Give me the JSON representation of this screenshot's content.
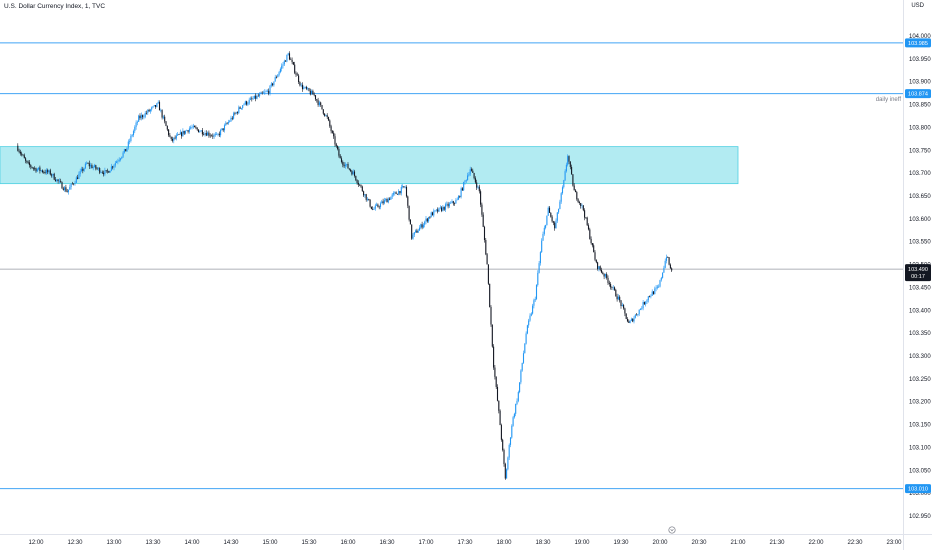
{
  "header": {
    "symbol_title": "U.S. Dollar Currency Index, 1, TVC",
    "currency": "USD"
  },
  "colors": {
    "background": "#ffffff",
    "candle_up": "#2196f3",
    "candle_down": "#131722",
    "level_line": "#42a5f5",
    "zone_fill": "#b2ebf2",
    "zone_border": "#4dd0e1",
    "axis_text": "#131722",
    "price_tag_bg": "#2196f3",
    "last_tag_bg": "#131722",
    "last_line": "#9598a1"
  },
  "chart_data": {
    "type": "candlestick",
    "symbol": "U.S. Dollar Currency Index",
    "interval": "1",
    "source": "TVC",
    "ylim": [
      102.93,
      104.02
    ],
    "y_ticks": [
      104.0,
      103.95,
      103.9,
      103.85,
      103.8,
      103.75,
      103.7,
      103.65,
      103.6,
      103.55,
      103.5,
      103.45,
      103.4,
      103.35,
      103.3,
      103.25,
      103.2,
      103.15,
      103.1,
      103.05,
      103.0,
      102.95
    ],
    "x_range": [
      "11:46",
      "23:13"
    ],
    "x_ticks": [
      "12:00",
      "12:30",
      "13:00",
      "13:30",
      "14:00",
      "14:30",
      "15:00",
      "15:30",
      "16:00",
      "16:30",
      "17:00",
      "17:30",
      "18:00",
      "18:30",
      "19:00",
      "19:30",
      "20:00",
      "20:30",
      "21:00",
      "21:30",
      "22:00",
      "22:30",
      "23:00"
    ],
    "path_keypoints": [
      {
        "t": "11:46",
        "p": 103.76
      },
      {
        "t": "11:54",
        "p": 103.72
      },
      {
        "t": "12:00",
        "p": 103.71
      },
      {
        "t": "12:12",
        "p": 103.7
      },
      {
        "t": "12:25",
        "p": 103.66
      },
      {
        "t": "12:40",
        "p": 103.72
      },
      {
        "t": "12:55",
        "p": 103.7
      },
      {
        "t": "13:10",
        "p": 103.75
      },
      {
        "t": "13:20",
        "p": 103.82
      },
      {
        "t": "13:35",
        "p": 103.85
      },
      {
        "t": "13:45",
        "p": 103.77
      },
      {
        "t": "14:00",
        "p": 103.8
      },
      {
        "t": "14:20",
        "p": 103.78
      },
      {
        "t": "14:40",
        "p": 103.85
      },
      {
        "t": "15:00",
        "p": 103.88
      },
      {
        "t": "15:15",
        "p": 103.96
      },
      {
        "t": "15:25",
        "p": 103.89
      },
      {
        "t": "15:35",
        "p": 103.87
      },
      {
        "t": "15:45",
        "p": 103.82
      },
      {
        "t": "15:55",
        "p": 103.73
      },
      {
        "t": "16:05",
        "p": 103.7
      },
      {
        "t": "16:20",
        "p": 103.62
      },
      {
        "t": "16:35",
        "p": 103.65
      },
      {
        "t": "16:45",
        "p": 103.67
      },
      {
        "t": "16:50",
        "p": 103.56
      },
      {
        "t": "17:05",
        "p": 103.61
      },
      {
        "t": "17:25",
        "p": 103.64
      },
      {
        "t": "17:35",
        "p": 103.71
      },
      {
        "t": "17:42",
        "p": 103.66
      },
      {
        "t": "17:48",
        "p": 103.5
      },
      {
        "t": "17:53",
        "p": 103.28
      },
      {
        "t": "17:58",
        "p": 103.15
      },
      {
        "t": "18:02",
        "p": 103.03
      },
      {
        "t": "18:07",
        "p": 103.15
      },
      {
        "t": "18:12",
        "p": 103.22
      },
      {
        "t": "18:18",
        "p": 103.35
      },
      {
        "t": "18:25",
        "p": 103.43
      },
      {
        "t": "18:30",
        "p": 103.55
      },
      {
        "t": "18:35",
        "p": 103.62
      },
      {
        "t": "18:40",
        "p": 103.58
      },
      {
        "t": "18:47",
        "p": 103.68
      },
      {
        "t": "18:50",
        "p": 103.74
      },
      {
        "t": "18:55",
        "p": 103.66
      },
      {
        "t": "19:02",
        "p": 103.62
      },
      {
        "t": "19:08",
        "p": 103.55
      },
      {
        "t": "19:12",
        "p": 103.5
      },
      {
        "t": "19:20",
        "p": 103.47
      },
      {
        "t": "19:30",
        "p": 103.42
      },
      {
        "t": "19:37",
        "p": 103.37
      },
      {
        "t": "19:45",
        "p": 103.4
      },
      {
        "t": "19:52",
        "p": 103.43
      },
      {
        "t": "20:00",
        "p": 103.45
      },
      {
        "t": "20:06",
        "p": 103.52
      },
      {
        "t": "20:09",
        "p": 103.49
      }
    ],
    "horizontal_levels": [
      {
        "price": 103.985,
        "label": "103.985"
      },
      {
        "price": 103.874,
        "label": "103.874",
        "annotation": "daily ineff"
      },
      {
        "price": 103.01,
        "label": "103.010"
      }
    ],
    "zone": {
      "from_price": 103.677,
      "to_price": 103.758,
      "x_end": "21:00"
    },
    "last_price": {
      "label": "103.490",
      "countdown": "00:17",
      "price": 103.49
    }
  }
}
